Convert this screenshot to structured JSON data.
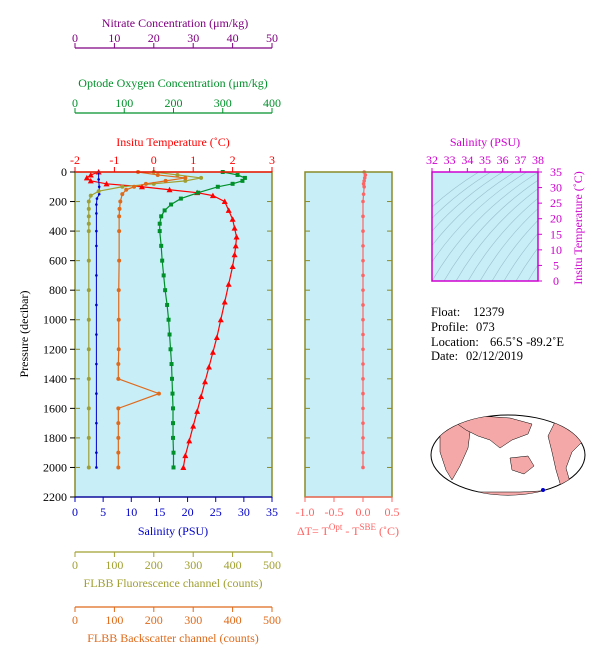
{
  "info": {
    "float_label": "Float:",
    "float_value": "12379",
    "profile_label": "Profile:",
    "profile_value": "073",
    "location_label": "Location:",
    "location_value": "66.5˚S  -89.2˚E",
    "date_label": "Date:",
    "date_value": "02/12/2019"
  },
  "colors": {
    "temperature": "#ff0000",
    "salinity": "#0000c8",
    "oxygen": "#00902a",
    "nitrate": "#800080",
    "fluorescence": "#a0a032",
    "backscatter": "#e06a1a",
    "ts_axes": "#d000d0",
    "panel_bg": "#c8eef8",
    "frame": "#8a8a28",
    "delta_t": "#ff6464"
  },
  "chart_data": [
    {
      "type": "line",
      "title": "",
      "ylabel": "Pressure (decibar)",
      "ylim": [
        2200,
        0
      ],
      "yticks": [
        "0",
        "200",
        "400",
        "600",
        "800",
        "1000",
        "1200",
        "1400",
        "1600",
        "1800",
        "2000",
        "2200"
      ],
      "axes": {
        "nitrate": {
          "label": "Nitrate Concentration (μm/kg)",
          "range": [
            0,
            50
          ],
          "ticks": [
            "0",
            "10",
            "20",
            "30",
            "40",
            "50"
          ]
        },
        "oxygen": {
          "label": "Optode Oxygen Concentration (μm/kg)",
          "range": [
            0,
            400
          ],
          "ticks": [
            "0",
            "100",
            "200",
            "300",
            "400"
          ]
        },
        "temperature": {
          "label": "Insitu Temperature (˚C)",
          "range": [
            -2,
            3
          ],
          "ticks": [
            "-2",
            "-1",
            "0",
            "1",
            "2",
            "3"
          ]
        },
        "salinity": {
          "label": "Salinity (PSU)",
          "range": [
            0,
            35
          ],
          "ticks": [
            "0",
            "5",
            "10",
            "15",
            "20",
            "25",
            "30",
            "35"
          ]
        },
        "fluorescence": {
          "label": "FLBB Fluorescence channel (counts)",
          "range": [
            0,
            500
          ],
          "ticks": [
            "0",
            "100",
            "200",
            "300",
            "400",
            "500"
          ]
        },
        "backscatter": {
          "label": "FLBB Backscatter channel (counts)",
          "range": [
            0,
            500
          ],
          "ticks": [
            "0",
            "100",
            "200",
            "300",
            "400",
            "500"
          ]
        }
      },
      "series": [
        {
          "key": "temperature",
          "axis": "temperature",
          "marker": "triangle",
          "points": [
            [
              -1.4,
              0
            ],
            [
              -1.6,
              20
            ],
            [
              -1.7,
              40
            ],
            [
              -1.6,
              60
            ],
            [
              -1.2,
              80
            ],
            [
              -0.3,
              100
            ],
            [
              0.4,
              120
            ],
            [
              1.1,
              140
            ],
            [
              1.5,
              160
            ],
            [
              1.8,
              200
            ],
            [
              1.9,
              260
            ],
            [
              2.0,
              320
            ],
            [
              2.05,
              380
            ],
            [
              2.1,
              440
            ],
            [
              2.08,
              500
            ],
            [
              2.05,
              560
            ],
            [
              2.0,
              640
            ],
            [
              1.9,
              760
            ],
            [
              1.8,
              880
            ],
            [
              1.7,
              1000
            ],
            [
              1.6,
              1120
            ],
            [
              1.5,
              1220
            ],
            [
              1.4,
              1320
            ],
            [
              1.3,
              1420
            ],
            [
              1.2,
              1520
            ],
            [
              1.1,
              1620
            ],
            [
              1.0,
              1720
            ],
            [
              0.9,
              1820
            ],
            [
              0.8,
              1920
            ],
            [
              0.75,
              2000
            ]
          ]
        },
        {
          "key": "salinity",
          "axis": "salinity",
          "points": [
            [
              4.2,
              0
            ],
            [
              4.2,
              50
            ],
            [
              4.3,
              100
            ],
            [
              4.3,
              150
            ],
            [
              3.9,
              180
            ],
            [
              3.8,
              220
            ],
            [
              3.8,
              280
            ],
            [
              3.8,
              400
            ],
            [
              3.8,
              500
            ],
            [
              3.8,
              700
            ],
            [
              3.8,
              900
            ],
            [
              3.8,
              1100
            ],
            [
              3.8,
              1300
            ],
            [
              3.8,
              1500
            ],
            [
              3.8,
              1700
            ],
            [
              3.8,
              1900
            ],
            [
              3.8,
              2000
            ]
          ]
        },
        {
          "key": "oxygen",
          "axis": "oxygen",
          "marker": "square",
          "points": [
            [
              300,
              0
            ],
            [
              330,
              20
            ],
            [
              345,
              40
            ],
            [
              340,
              60
            ],
            [
              320,
              80
            ],
            [
              290,
              100
            ],
            [
              250,
              140
            ],
            [
              215,
              180
            ],
            [
              195,
              220
            ],
            [
              182,
              260
            ],
            [
              175,
              300
            ],
            [
              172,
              350
            ],
            [
              172,
              400
            ],
            [
              175,
              500
            ],
            [
              177,
              600
            ],
            [
              180,
              700
            ],
            [
              183,
              800
            ],
            [
              187,
              900
            ],
            [
              190,
              1000
            ],
            [
              192,
              1100
            ],
            [
              194,
              1200
            ],
            [
              196,
              1300
            ],
            [
              197,
              1400
            ],
            [
              198,
              1500
            ],
            [
              199,
              1600
            ],
            [
              199,
              1700
            ],
            [
              199,
              1800
            ],
            [
              200,
              1900
            ],
            [
              200,
              2000
            ]
          ]
        },
        {
          "key": "fluorescence",
          "axis": "fluorescence",
          "marker": "circle",
          "points": [
            [
              200,
              0
            ],
            [
              260,
              20
            ],
            [
              320,
              40
            ],
            [
              280,
              60
            ],
            [
              200,
              80
            ],
            [
              120,
              100
            ],
            [
              60,
              130
            ],
            [
              40,
              160
            ],
            [
              35,
              200
            ],
            [
              35,
              250
            ],
            [
              35,
              300
            ],
            [
              35,
              350
            ],
            [
              35,
              400
            ],
            [
              35,
              600
            ],
            [
              35,
              800
            ],
            [
              35,
              1000
            ],
            [
              35,
              1200
            ],
            [
              35,
              1400
            ],
            [
              35,
              1600
            ],
            [
              35,
              1800
            ],
            [
              35,
              2000
            ]
          ]
        },
        {
          "key": "backscatter",
          "axis": "backscatter",
          "marker": "circle",
          "points": [
            [
              160,
              0
            ],
            [
              210,
              20
            ],
            [
              280,
              40
            ],
            [
              230,
              60
            ],
            [
              180,
              80
            ],
            [
              150,
              100
            ],
            [
              130,
              120
            ],
            [
              120,
              150
            ],
            [
              115,
              200
            ],
            [
              113,
              250
            ],
            [
              112,
              300
            ],
            [
              112,
              400
            ],
            [
              112,
              600
            ],
            [
              111,
              800
            ],
            [
              111,
              1000
            ],
            [
              111,
              1200
            ],
            [
              110,
              1300
            ],
            [
              110,
              1400
            ],
            [
              213,
              1500
            ],
            [
              110,
              1600
            ],
            [
              110,
              1700
            ],
            [
              110,
              1800
            ],
            [
              110,
              1900
            ],
            [
              110,
              2000
            ]
          ]
        }
      ]
    },
    {
      "type": "line",
      "title": "",
      "xlabel": "ΔT= T",
      "xlabel_sup1": "Opt",
      "xlabel_mid": " - T",
      "xlabel_sup2": "SBE",
      "xlabel_unit": " (˚C)",
      "xlim": [
        -1.0,
        0.5
      ],
      "xticks": [
        "-1.0",
        "-0.5",
        "0.0",
        "0.5"
      ],
      "series": [
        {
          "key": "delta_t",
          "points": [
            [
              0.02,
              0
            ],
            [
              0.04,
              20
            ],
            [
              0.03,
              40
            ],
            [
              0.02,
              60
            ],
            [
              0.01,
              80
            ],
            [
              0.02,
              100
            ],
            [
              0.01,
              150
            ],
            [
              0.0,
              200
            ],
            [
              0.0,
              300
            ],
            [
              0.0,
              400
            ],
            [
              0.0,
              500
            ],
            [
              0.0,
              600
            ],
            [
              0.0,
              700
            ],
            [
              0.0,
              800
            ],
            [
              0.0,
              900
            ],
            [
              0.0,
              1000
            ],
            [
              0.0,
              1100
            ],
            [
              0.0,
              1200
            ],
            [
              0.0,
              1300
            ],
            [
              0.0,
              1400
            ],
            [
              0.0,
              1500
            ],
            [
              0.0,
              1600
            ],
            [
              0.0,
              1700
            ],
            [
              0.0,
              1800
            ],
            [
              0.0,
              1900
            ],
            [
              0.0,
              2000
            ]
          ]
        }
      ]
    },
    {
      "type": "scatter",
      "title": "",
      "xlabel": "Salinity (PSU)",
      "ylabel": "Insitu Temperature (˚C)",
      "xlim": [
        32,
        38
      ],
      "ylim": [
        0,
        35
      ],
      "xticks": [
        "32",
        "33",
        "34",
        "35",
        "36",
        "37",
        "38"
      ],
      "yticks": [
        "0",
        "5",
        "10",
        "15",
        "20",
        "25",
        "30",
        "35"
      ]
    }
  ]
}
